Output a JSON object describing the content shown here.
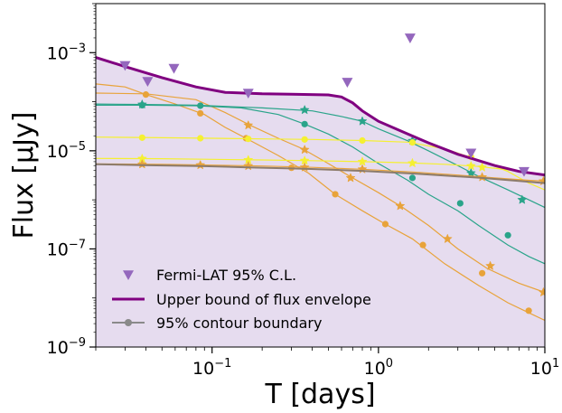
{
  "chart_data": {
    "type": "line",
    "xlabel": "T [days]",
    "ylabel": "Flux [μJy]",
    "xscale": "log",
    "yscale": "log",
    "xlim": [
      0.02,
      10
    ],
    "ylim": [
      1e-09,
      0.01
    ],
    "x_ticks": [
      {
        "value": 0.1,
        "base": "10",
        "exp": "−1"
      },
      {
        "value": 1,
        "base": "10",
        "exp": "0"
      },
      {
        "value": 10,
        "base": "10",
        "exp": "1"
      }
    ],
    "y_ticks": [
      {
        "value": 1e-09,
        "base": "10",
        "exp": "−9"
      },
      {
        "value": 1e-07,
        "base": "10",
        "exp": "−7"
      },
      {
        "value": 1e-05,
        "base": "10",
        "exp": "−5"
      },
      {
        "value": 0.001,
        "base": "10",
        "exp": "−3"
      }
    ],
    "legend": {
      "position": "lower-left",
      "entries": [
        "Fermi-LAT 95% C.L.",
        "Upper bound of flux envelope",
        "95% contour boundary"
      ]
    },
    "colors": {
      "fill": "#e6dcef",
      "upper": "#800080",
      "fermi": "#9467bd",
      "contour": "#8c7b6b",
      "orange": "#e8a33a",
      "teal": "#2aa48a",
      "yellow": "#f5f032"
    },
    "fermi_points": [
      {
        "x": 0.03,
        "y": 0.00055
      },
      {
        "x": 0.041,
        "y": 0.00026
      },
      {
        "x": 0.059,
        "y": 0.00048
      },
      {
        "x": 0.165,
        "y": 0.00015
      },
      {
        "x": 0.65,
        "y": 0.00025
      },
      {
        "x": 1.55,
        "y": 0.002
      },
      {
        "x": 3.6,
        "y": 9e-06
      },
      {
        "x": 7.5,
        "y": 3.8e-06
      }
    ],
    "upper_bound": {
      "x": [
        0.02,
        0.03,
        0.05,
        0.08,
        0.12,
        0.2,
        0.3,
        0.5,
        0.6,
        0.7,
        0.8,
        1.0,
        1.5,
        2.0,
        3.0,
        5.0,
        7.0,
        10.0
      ],
      "y": [
        0.0008,
        0.00052,
        0.00031,
        0.0002,
        0.000155,
        0.000145,
        0.000142,
        0.000138,
        0.000125,
        9.5e-05,
        6.5e-05,
        4e-05,
        2.2e-05,
        1.45e-05,
        8.5e-06,
        5e-06,
        3.8e-06,
        3.2e-06
      ]
    },
    "contour_boundary": {
      "x": [
        0.02,
        0.038,
        0.085,
        0.165,
        0.36,
        0.8,
        1.7,
        4.2,
        10.0
      ],
      "y": [
        5.3e-06,
        5.1e-06,
        4.9e-06,
        4.6e-06,
        4.3e-06,
        3.9e-06,
        3.4e-06,
        2.8e-06,
        2.2e-06
      ],
      "marker_x": [
        0.038,
        0.085,
        0.165,
        0.36,
        0.8,
        1.7,
        4.2,
        10.0
      ]
    },
    "model_curves": [
      {
        "color": "orange",
        "marker": "circle",
        "x": [
          0.02,
          0.03,
          0.04,
          0.06,
          0.09,
          0.12,
          0.16,
          0.25,
          0.38,
          0.55,
          0.8,
          1.1,
          1.6,
          2.5,
          4.0,
          6.0,
          8.0,
          10.0
        ],
        "y": [
          0.00023,
          0.0002,
          0.00014,
          9e-05,
          5.5e-05,
          3e-05,
          1.8e-05,
          8e-06,
          3.5e-06,
          1.3e-06,
          6e-07,
          3.2e-07,
          1.6e-07,
          5e-08,
          1.8e-08,
          8e-09,
          5e-09,
          3.5e-09
        ],
        "markers": [
          {
            "x": 0.04,
            "y": 0.00014
          },
          {
            "x": 0.085,
            "y": 5.8e-05
          },
          {
            "x": 0.16,
            "y": 1.8e-05
          },
          {
            "x": 0.3,
            "y": 4.5e-06
          },
          {
            "x": 0.55,
            "y": 1.3e-06
          },
          {
            "x": 1.1,
            "y": 3.2e-07
          },
          {
            "x": 1.85,
            "y": 1.2e-07
          },
          {
            "x": 4.2,
            "y": 3.2e-08
          },
          {
            "x": 8.0,
            "y": 5.5e-09
          }
        ]
      },
      {
        "color": "orange",
        "marker": "star",
        "x": [
          0.02,
          0.04,
          0.08,
          0.12,
          0.17,
          0.25,
          0.35,
          0.5,
          0.7,
          1.0,
          1.4,
          2.0,
          3.0,
          4.5,
          7.0,
          10.0
        ],
        "y": [
          0.00015,
          0.000145,
          0.00011,
          6e-05,
          3.3e-05,
          1.8e-05,
          1.1e-05,
          5.5e-06,
          2.8e-06,
          1.4e-06,
          7e-07,
          3e-07,
          1e-07,
          4e-08,
          2e-08,
          1.3e-08
        ],
        "markers": [
          {
            "x": 0.165,
            "y": 3.3e-05
          },
          {
            "x": 0.36,
            "y": 1.05e-05
          },
          {
            "x": 0.68,
            "y": 2.8e-06
          },
          {
            "x": 1.35,
            "y": 7.5e-07
          },
          {
            "x": 2.6,
            "y": 1.6e-07
          },
          {
            "x": 4.7,
            "y": 4.5e-08
          },
          {
            "x": 9.8,
            "y": 1.3e-08
          }
        ]
      },
      {
        "color": "teal",
        "marker": "circle",
        "x": [
          0.02,
          0.04,
          0.08,
          0.15,
          0.25,
          0.36,
          0.5,
          0.7,
          1.0,
          1.5,
          2.0,
          3.0,
          4.0,
          6.0,
          8.0,
          10.0
        ],
        "y": [
          8.5e-05,
          8.5e-05,
          8.3e-05,
          7.5e-05,
          5.5e-05,
          3.5e-05,
          2.2e-05,
          1.2e-05,
          5.5e-06,
          2.5e-06,
          1.3e-06,
          6e-07,
          3e-07,
          1.2e-07,
          7e-08,
          5e-08
        ],
        "markers": [
          {
            "x": 0.038,
            "y": 8.5e-05
          },
          {
            "x": 0.085,
            "y": 8.3e-05
          },
          {
            "x": 0.36,
            "y": 3.5e-05
          },
          {
            "x": 1.6,
            "y": 2.8e-06
          },
          {
            "x": 3.1,
            "y": 8.5e-07
          },
          {
            "x": 6.0,
            "y": 1.9e-07
          }
        ]
      },
      {
        "color": "teal",
        "marker": "star",
        "x": [
          0.02,
          0.04,
          0.08,
          0.2,
          0.4,
          0.6,
          0.8,
          1.0,
          1.5,
          2.0,
          3.0,
          4.0,
          6.0,
          8.0,
          10.0
        ],
        "y": [
          9e-05,
          8.8e-05,
          8.5e-05,
          7.5e-05,
          6.5e-05,
          5e-05,
          4e-05,
          2.8e-05,
          1.6e-05,
          1e-05,
          5e-06,
          3e-06,
          1.6e-06,
          1e-06,
          7e-07
        ],
        "markers": [
          {
            "x": 0.038,
            "y": 8.8e-05
          },
          {
            "x": 0.36,
            "y": 6.8e-05
          },
          {
            "x": 0.8,
            "y": 4e-05
          },
          {
            "x": 1.6,
            "y": 1.6e-05
          },
          {
            "x": 3.6,
            "y": 3.5e-06
          },
          {
            "x": 7.3,
            "y": 1e-06
          }
        ]
      },
      {
        "color": "yellow",
        "marker": "circle",
        "x": [
          0.02,
          0.05,
          0.1,
          0.2,
          0.4,
          0.8,
          1.5,
          2.5,
          4.0,
          6.0,
          8.0,
          10.0
        ],
        "y": [
          1.9e-05,
          1.85e-05,
          1.8e-05,
          1.75e-05,
          1.7e-05,
          1.62e-05,
          1.5e-05,
          1.1e-05,
          6.5e-06,
          3.8e-06,
          2.2e-06,
          1.6e-06
        ],
        "markers": [
          {
            "x": 0.038,
            "y": 1.85e-05
          },
          {
            "x": 0.085,
            "y": 1.8e-05
          },
          {
            "x": 0.165,
            "y": 1.75e-05
          },
          {
            "x": 0.36,
            "y": 1.7e-05
          },
          {
            "x": 0.8,
            "y": 1.62e-05
          },
          {
            "x": 1.6,
            "y": 1.48e-05
          },
          {
            "x": 3.6,
            "y": 7.5e-06
          }
        ]
      },
      {
        "color": "yellow",
        "marker": "star",
        "x": [
          0.02,
          0.05,
          0.1,
          0.2,
          0.4,
          0.8,
          1.5,
          2.5,
          4.0,
          6.0,
          8.0,
          10.0
        ],
        "y": [
          7e-06,
          6.9e-06,
          6.7e-06,
          6.5e-06,
          6.3e-06,
          6e-06,
          5.7e-06,
          5.3e-06,
          4.8e-06,
          4.1e-06,
          3.5e-06,
          3.1e-06
        ],
        "markers": [
          {
            "x": 0.038,
            "y": 6.9e-06
          },
          {
            "x": 0.165,
            "y": 6.5e-06
          },
          {
            "x": 0.36,
            "y": 6.3e-06
          },
          {
            "x": 0.8,
            "y": 6e-06
          },
          {
            "x": 1.6,
            "y": 5.6e-06
          },
          {
            "x": 3.6,
            "y": 4.9e-06
          },
          {
            "x": 4.2,
            "y": 4.6e-06
          }
        ]
      },
      {
        "color": "orange",
        "marker": "star",
        "x": [
          0.02,
          0.05,
          0.1,
          0.2,
          0.4,
          0.8,
          1.6,
          3.0,
          5.0,
          8.0,
          10.0
        ],
        "y": [
          5.4e-06,
          5.3e-06,
          5.1e-06,
          4.9e-06,
          4.6e-06,
          4.2e-06,
          3.7e-06,
          3.2e-06,
          2.8e-06,
          2.5e-06,
          2.4e-06
        ],
        "markers": [
          {
            "x": 0.038,
            "y": 5.3e-06
          },
          {
            "x": 0.085,
            "y": 5.1e-06
          },
          {
            "x": 0.165,
            "y": 4.9e-06
          },
          {
            "x": 0.36,
            "y": 4.6e-06
          },
          {
            "x": 0.8,
            "y": 4.2e-06
          },
          {
            "x": 4.2,
            "y": 2.9e-06
          },
          {
            "x": 9.8,
            "y": 2.4e-06
          }
        ]
      }
    ]
  }
}
